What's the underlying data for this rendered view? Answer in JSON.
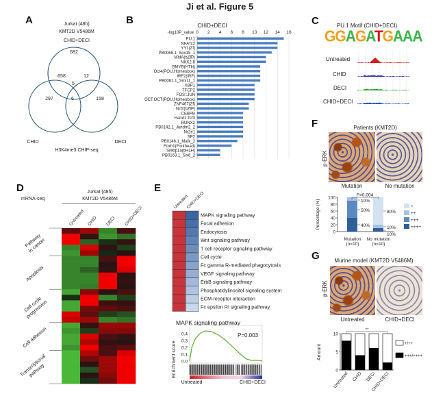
{
  "figure_title": "Ji et al. Figure 5",
  "panels": {
    "A": {
      "label": "A",
      "header": [
        "Jurkat (48h)",
        "KMT2D V5486M"
      ],
      "sets": {
        "top": "CHID+DECI",
        "left": "CHID",
        "right": "DECI"
      },
      "counts": {
        "top_only": "682",
        "top_left": "658",
        "top_right": "12",
        "all": "5",
        "left_only": "297",
        "left_right": "6",
        "right_only": "158"
      },
      "footer": "H3K4me3 CHIP-seq"
    },
    "B": {
      "label": "B"
    },
    "C": {
      "label": "C",
      "title": "PU.1  Motif (CHID+DECI)",
      "motif": "GGAGATGAAA",
      "motif_colors": [
        "#f0a020",
        "#f0a020",
        "#3cb44b",
        "#f0a020",
        "#3cb44b",
        "#d01c1c",
        "#f0a020",
        "#3cb44b",
        "#3cb44b",
        "#3cb44b"
      ],
      "tracks": [
        {
          "name": "Untreated",
          "color": "#d02020"
        },
        {
          "name": "CHID",
          "color": "#3030a0"
        },
        {
          "name": "DECI",
          "color": "#20a020"
        },
        {
          "name": "CHID+DECI",
          "color": "#2050c0"
        }
      ]
    },
    "D": {
      "label": "D",
      "assay": "mRNA-seq",
      "header": [
        "Jurkat (48h)",
        "KMT2D V5486M"
      ],
      "columns": [
        "Untreated",
        "CHID",
        "DECI",
        "CHID+DECI"
      ],
      "groups": [
        {
          "name": [
            "Pathway",
            "in cancer"
          ],
          "rows": [
            [
              0.3,
              0.6,
              -0.6,
              0.2
            ],
            [
              1,
              0.1,
              -0.7,
              -0.5
            ],
            [
              1,
              -0.4,
              -0.1,
              0.1
            ],
            [
              -0.6,
              0.9,
              0.1,
              -0.2
            ],
            [
              -0.7,
              0.6,
              -0.05,
              0.05
            ]
          ]
        },
        {
          "name": [
            "Apoptosis"
          ],
          "rows": [
            [
              -0.6,
              -0.6,
              0.2,
              1
            ],
            [
              -0.6,
              -0.6,
              0.05,
              1
            ],
            [
              -0.6,
              -0.4,
              0.1,
              0.9
            ],
            [
              -0.6,
              -0.6,
              1,
              0.05
            ],
            [
              -0.6,
              -0.6,
              1,
              0.1
            ],
            [
              -0.6,
              -0.55,
              1,
              0.05
            ]
          ]
        },
        {
          "name": [
            "Cell cycle",
            "progression"
          ],
          "rows": [
            [
              -0.8,
              0.5,
              0.05,
              0.2
            ],
            [
              -0.1,
              1,
              -0.6,
              -0.2
            ],
            [
              -0.8,
              1,
              0.15,
              0.1
            ],
            [
              -0.8,
              0.4,
              0.3,
              0.2
            ],
            [
              0.9,
              0.3,
              -0.2,
              -0.3
            ],
            [
              0.8,
              0.6,
              -0.6,
              -0.5
            ]
          ]
        },
        {
          "name": [
            "Cell adhesion"
          ],
          "rows": [
            [
              -0.8,
              0.1,
              0.6,
              0.6
            ],
            [
              -0.7,
              -0.2,
              0.5,
              0.5
            ],
            [
              -0.8,
              0.9,
              0.2,
              0.1
            ],
            [
              -0.8,
              0.7,
              0.1,
              0.05
            ],
            [
              -0.7,
              1,
              0.2,
              0.3
            ]
          ]
        },
        {
          "name": [
            "Transcriptional",
            "pathway"
          ],
          "rows": [
            [
              -0.9,
              0.7,
              0.2,
              0.9
            ],
            [
              -0.9,
              0.4,
              0.6,
              1
            ],
            [
              -0.9,
              0.05,
              0.6,
              1
            ],
            [
              -0.9,
              -0.3,
              0.6,
              1
            ],
            [
              -0.9,
              0.05,
              0.5,
              1
            ],
            [
              -0.9,
              -0.1,
              0.4,
              1
            ]
          ]
        }
      ]
    },
    "E": {
      "label": "E",
      "columns": [
        "Untreated",
        "CHID+DECI"
      ],
      "pathways": [
        "MAPK signaling pathway",
        "Focal adhesion",
        "Endocytosis",
        "Wnt signaling pathway",
        "T cell receptor signaling pathway",
        "Cell cycle",
        "Fc gamma R-mediated phagocytosis",
        "VEGF signaling pathway",
        "ErbB signaling pathway",
        "Phosphatidylinositol signaling system",
        "ECM-receptor interaction",
        "Fc epsilon RI signaling pathway"
      ],
      "colors": {
        "up": "#c8343a",
        "down_strong": "#3a64a3",
        "down_weak": "#c8d8ee"
      }
    },
    "F": {
      "label": "F",
      "title": "Patients (KMT2D)",
      "stain": "p-ERK",
      "images": [
        "Mutation",
        "No mutation"
      ]
    },
    "G": {
      "label": "G",
      "title": "Murine model (KMT2D V5486M)",
      "stain": "p-ERK",
      "images": [
        "Untreated",
        "CHID+DECI"
      ]
    }
  },
  "chart_data": [
    {
      "id": "B",
      "type": "bar",
      "orientation": "horizontal",
      "title": "CHID+DECI",
      "xlabel": "-log10P_value",
      "xlim": [
        0,
        16
      ],
      "xticks": [
        "0",
        "2",
        "4",
        "6",
        "8",
        "10",
        "12",
        "14",
        "16"
      ],
      "grid": true,
      "bar_color": "#4a7cc0",
      "categories": [
        "PU.1",
        "NFATc2",
        "YY1(Zf)",
        "PB0065.1_Sox15_1",
        "MafA(bZIP)",
        "NKX2-8",
        "BMYB(HTH)",
        "Oct4(POU,Homeobox)",
        "IRF2(IRF)",
        "PB0061.1_Sox11_1",
        "XBP1",
        "TFCP2",
        "FOS::JUN",
        "OCT:OCT(POU,Homeobox)",
        "ZNF467(Zf)",
        "Nrf2(bZIP)",
        "CEBPB",
        "Hand1:Tcf3",
        "RUNX2",
        "PB0142.1_Jundm2_2",
        "Nr2e1",
        "SP2",
        "PB0146.1_Mafk_2",
        "Foxh1(Forkhead)",
        "Srebp1a(bHLH)",
        "PB0163.1_Six6_2"
      ],
      "values": [
        15.1,
        14,
        14,
        13,
        12,
        12,
        11,
        11,
        11,
        11,
        10,
        10,
        10,
        10,
        9,
        9,
        8,
        8,
        8,
        8,
        8,
        8,
        7,
        6,
        4,
        4
      ]
    },
    {
      "id": "E",
      "type": "line",
      "title": "MAPK signaling pathway",
      "ylabel": "Enrichment score",
      "ylim": [
        0,
        0.45
      ],
      "yticks": [
        "0.0",
        "0.1",
        "0.2",
        "0.3",
        "0.4"
      ],
      "annotation": "P=0.003",
      "x_left_label": "Untreated",
      "x_right_label": "CHID+DECI",
      "line_color": "#5cb030",
      "x": [
        0,
        0.03,
        0.08,
        0.15,
        0.22,
        0.3,
        0.4,
        0.5,
        0.6,
        0.7,
        0.78,
        0.85,
        0.95,
        1
      ],
      "y": [
        0,
        0.2,
        0.33,
        0.41,
        0.44,
        0.43,
        0.38,
        0.3,
        0.2,
        0.1,
        0.03,
        0.01,
        0.01,
        0
      ]
    },
    {
      "id": "F",
      "type": "bar",
      "stacked": true,
      "ylabel": "Percentage (%)",
      "ylim": [
        0,
        100
      ],
      "yticks": [
        "0",
        "20",
        "40",
        "60",
        "80",
        "100"
      ],
      "annotation": "P=0.004",
      "categories": [
        [
          "Mutation",
          "(n=10)"
        ],
        [
          "No mutation",
          "(n=10)"
        ]
      ],
      "series": [
        {
          "name": "++++",
          "color": "#2f5f96",
          "values": [
            40,
            10
          ]
        },
        {
          "name": "+++",
          "color": "#5b8ac0",
          "values": [
            50,
            0
          ]
        },
        {
          "name": "++",
          "color": "#a8c2e0",
          "values": [
            10,
            10
          ]
        },
        {
          "name": "+",
          "color": "#d4e1f0",
          "values": [
            0,
            80
          ]
        }
      ],
      "segment_labels": [
        [
          "40%",
          "50%",
          "10%"
        ],
        [
          "10%",
          "10%",
          "80%"
        ]
      ],
      "legend": "right"
    },
    {
      "id": "G",
      "type": "bar",
      "stacked": true,
      "ylabel": "Amount",
      "ylim": [
        0,
        10
      ],
      "yticks": [
        "0",
        "5",
        "10"
      ],
      "annotation": "**",
      "categories": [
        "Untreated",
        "CHID",
        "DECI",
        "CHID+DECI"
      ],
      "series": [
        {
          "name": "+++/++++",
          "color": "#000000",
          "values": [
            8,
            4,
            6,
            2
          ]
        },
        {
          "name": "+/++",
          "color": "#ffffff",
          "values": [
            2,
            6,
            4,
            8
          ]
        }
      ],
      "legend": "right"
    }
  ]
}
